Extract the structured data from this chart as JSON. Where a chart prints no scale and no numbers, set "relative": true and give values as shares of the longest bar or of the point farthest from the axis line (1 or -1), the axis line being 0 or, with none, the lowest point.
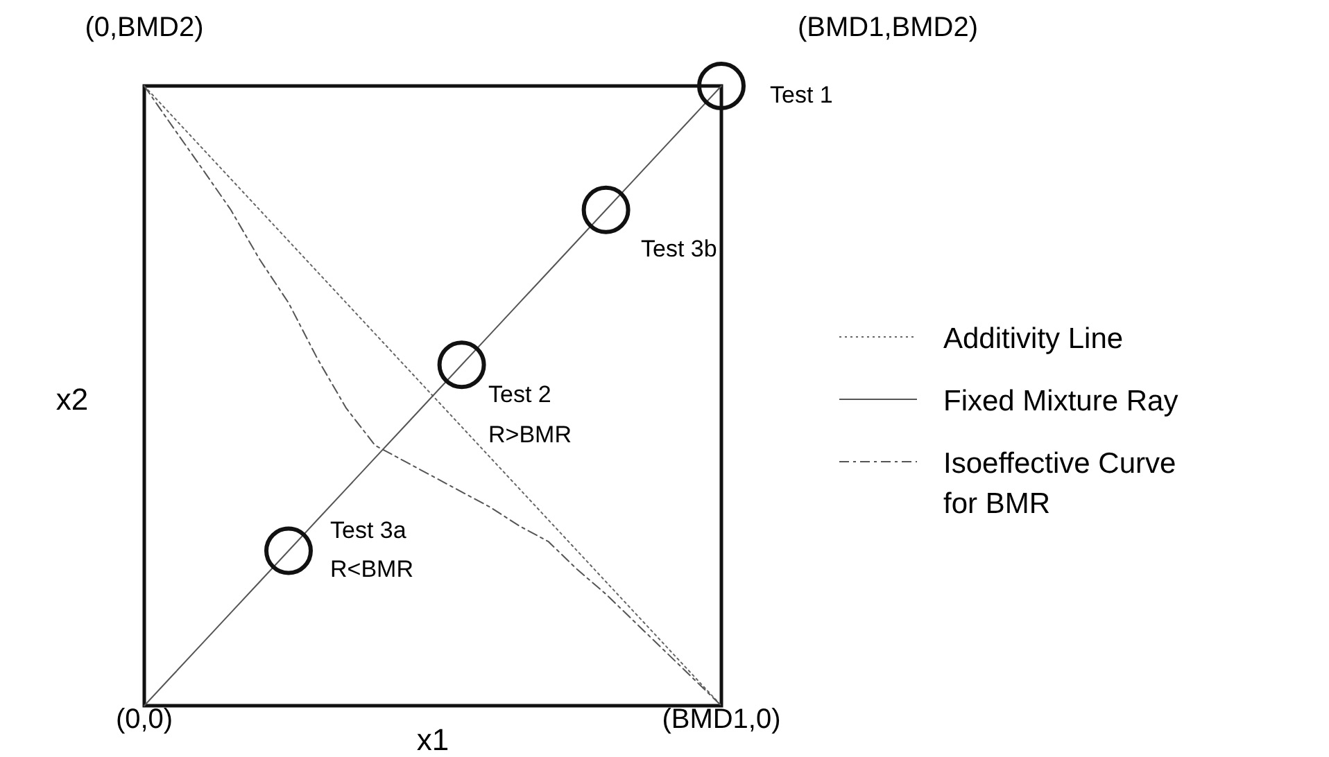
{
  "chart_data": {
    "type": "line",
    "relative": true,
    "xlabel": "x1",
    "ylabel": "x2",
    "categories": [
      "(0,0)",
      null,
      null,
      null,
      null,
      null,
      null,
      null,
      null,
      null,
      null,
      null,
      null,
      null,
      null,
      null,
      null,
      null,
      null,
      null,
      "(BMD1,0)"
    ],
    "legend": "right",
    "series": [
      {
        "name": "Additivity Line",
        "color": "#666666",
        "line_style": "dotted",
        "values": [
          1,
          0.95,
          0.9,
          0.85,
          0.8,
          0.75,
          0.7,
          0.65,
          0.6,
          0.55,
          0.5,
          0.45,
          0.4,
          0.35,
          0.3,
          0.25,
          0.2,
          0.15,
          0.1,
          0.05,
          0
        ]
      },
      {
        "name": "Fixed Mixture Ray",
        "color": "#555555",
        "line_style": "solid",
        "values": [
          0,
          0.05,
          0.1,
          0.15,
          0.2,
          0.25,
          0.3,
          0.35,
          0.4,
          0.45,
          0.5,
          0.55,
          0.6,
          0.65,
          0.7,
          0.75,
          0.8,
          0.85,
          0.9,
          0.95,
          1
        ]
      },
      {
        "name": "Isoeffective Curve for BMR",
        "color": "#555555",
        "line_style": "dashed",
        "values": [
          1,
          0.933,
          0.867,
          0.8,
          0.72,
          0.65,
          0.56,
          0.48,
          0.42,
          0.395,
          0.37,
          0.345,
          0.32,
          0.29,
          0.265,
          0.22,
          0.18,
          0.135,
          0.09,
          0.045,
          0
        ]
      },
      {
        "type": "scatter",
        "color": "#111111",
        "marker": "circle",
        "values": [
          null,
          null,
          null,
          null,
          null,
          0.25,
          null,
          null,
          null,
          null,
          null,
          0.55,
          null,
          null,
          null,
          null,
          0.8,
          null,
          null,
          null,
          1
        ]
      }
    ],
    "annotations": [
      "(0,BMD2)",
      "(BMD1,BMD2)",
      "Test 1",
      "Test 3b",
      "Test 2",
      "R>BMR",
      "Test 3a",
      "R<BMR"
    ]
  }
}
